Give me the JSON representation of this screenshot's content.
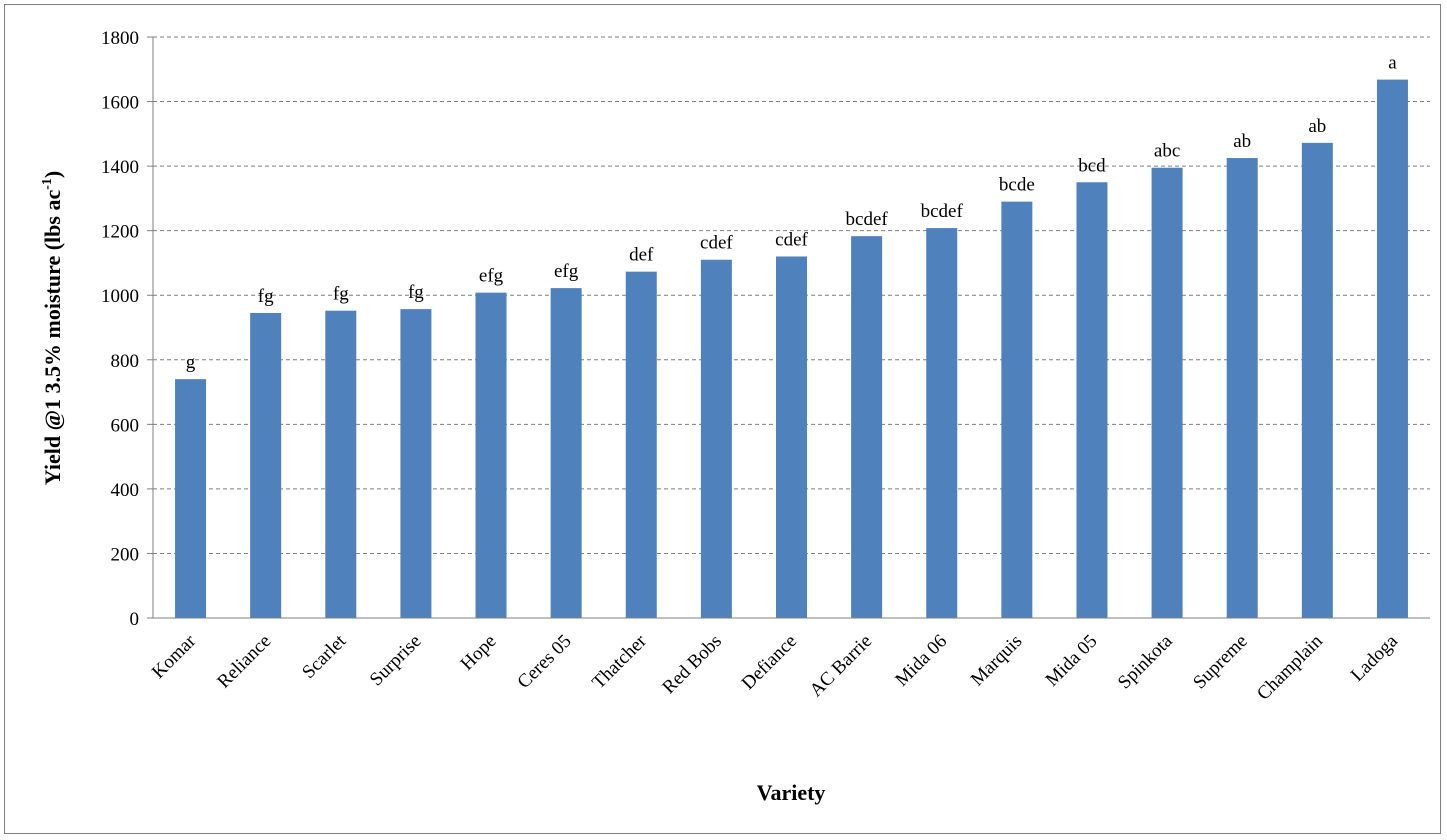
{
  "chart_data": {
    "type": "bar",
    "xlabel": "Variety",
    "ylabel_prefix": "Yield @1 3.5% moisture (lbs ac",
    "ylabel_sup": "-1",
    "ylabel_suffix": ")",
    "ylim": [
      0,
      1800
    ],
    "yticks": [
      0,
      200,
      400,
      600,
      800,
      1000,
      1200,
      1400,
      1600,
      1800
    ],
    "grid": true,
    "bar_color": "#4f81bd",
    "categories": [
      "Komar",
      "Reliance",
      "Scarlet",
      "Surprise",
      "Hope",
      "Ceres 05",
      "Thatcher",
      "Red Bobs",
      "Defiance",
      "AC Barrie",
      "Mida 06",
      "Marquis",
      "Mida 05",
      "Spinkota",
      "Supreme",
      "Champlain",
      "Ladoga"
    ],
    "values": [
      740,
      945,
      952,
      957,
      1008,
      1022,
      1073,
      1110,
      1120,
      1183,
      1208,
      1290,
      1350,
      1395,
      1425,
      1472,
      1668
    ],
    "labels": [
      "g",
      "fg",
      "fg",
      "fg",
      "efg",
      "efg",
      "def",
      "cdef",
      "cdef",
      "bcdef",
      "bcdef",
      "bcde",
      "bcd",
      "abc",
      "ab",
      "ab",
      "a"
    ]
  }
}
